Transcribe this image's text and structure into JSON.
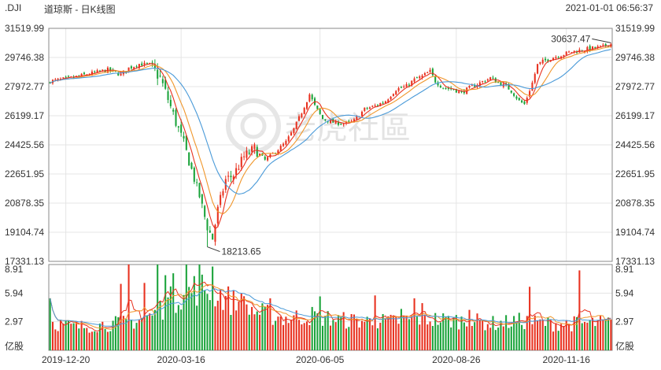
{
  "header": {
    "symbol": ".DJI",
    "title": "道琼斯 - 日K线图",
    "timestamp": "2021-01-01 06:56:37"
  },
  "watermark": {
    "text": "老虎社區"
  },
  "colors": {
    "up": "#e8311f",
    "down": "#1aa33a",
    "ma5": "#e8311f",
    "ma10": "#f0962a",
    "ma20": "#4a9ad8",
    "grid": "#e5e5e5",
    "frame": "#888888"
  },
  "chart_data": {
    "type": "candlestick",
    "price_axis": {
      "min": 17331.13,
      "max": 31519.99,
      "ticks": [
        "31519.99",
        "29746.38",
        "27972.77",
        "26199.17",
        "24425.56",
        "22651.95",
        "20878.35",
        "19104.74",
        "17331.13"
      ]
    },
    "volume_axis": {
      "max": 8.91,
      "ticks": [
        "8.91",
        "5.94",
        "2.97"
      ],
      "unit": "亿股"
    },
    "x_ticks": [
      "2019-12-20",
      "2020-03-16",
      "2020-06-05",
      "2020-08-26",
      "2020-11-16"
    ],
    "annotations": {
      "high": "30637.47",
      "low": "18213.65"
    },
    "price_path": [
      [
        0,
        28300
      ],
      [
        8,
        28500
      ],
      [
        15,
        28750
      ],
      [
        22,
        29000
      ],
      [
        27,
        28700
      ],
      [
        30,
        29100
      ],
      [
        34,
        29350
      ],
      [
        38,
        29300
      ],
      [
        42,
        28500
      ],
      [
        45,
        27200
      ],
      [
        48,
        25800
      ],
      [
        51,
        24500
      ],
      [
        54,
        22900
      ],
      [
        57,
        21300
      ],
      [
        60,
        19400
      ],
      [
        62,
        18700
      ],
      [
        64,
        20500
      ],
      [
        67,
        22300
      ],
      [
        70,
        22600
      ],
      [
        74,
        23700
      ],
      [
        78,
        24200
      ],
      [
        82,
        23500
      ],
      [
        86,
        24000
      ],
      [
        90,
        24600
      ],
      [
        93,
        25400
      ],
      [
        96,
        26400
      ],
      [
        99,
        27500
      ],
      [
        101,
        26800
      ],
      [
        104,
        26000
      ],
      [
        108,
        25800
      ],
      [
        112,
        25700
      ],
      [
        116,
        25900
      ],
      [
        120,
        26600
      ],
      [
        124,
        26800
      ],
      [
        128,
        27100
      ],
      [
        132,
        27800
      ],
      [
        136,
        28000
      ],
      [
        139,
        28400
      ],
      [
        142,
        28600
      ],
      [
        145,
        28900
      ],
      [
        147,
        28300
      ],
      [
        150,
        27900
      ],
      [
        154,
        27800
      ],
      [
        157,
        27600
      ],
      [
        160,
        27900
      ],
      [
        164,
        28200
      ],
      [
        168,
        28500
      ],
      [
        171,
        28200
      ],
      [
        174,
        28000
      ],
      [
        176,
        27700
      ],
      [
        179,
        27100
      ],
      [
        181,
        26900
      ],
      [
        184,
        28200
      ],
      [
        186,
        29300
      ],
      [
        188,
        29500
      ],
      [
        191,
        29700
      ],
      [
        195,
        29900
      ],
      [
        199,
        30100
      ],
      [
        203,
        30200
      ],
      [
        207,
        30300
      ],
      [
        211,
        30400
      ],
      [
        214,
        30637
      ]
    ],
    "volume_envelope": [
      [
        0,
        3.2
      ],
      [
        10,
        2.6
      ],
      [
        20,
        2.9
      ],
      [
        30,
        3.1
      ],
      [
        40,
        4.0
      ],
      [
        45,
        5.4
      ],
      [
        50,
        6.3
      ],
      [
        55,
        6.9
      ],
      [
        60,
        7.0
      ],
      [
        65,
        6.2
      ],
      [
        70,
        5.4
      ],
      [
        75,
        4.8
      ],
      [
        80,
        4.2
      ],
      [
        90,
        3.6
      ],
      [
        100,
        3.9
      ],
      [
        110,
        3.4
      ],
      [
        120,
        3.3
      ],
      [
        130,
        3.2
      ],
      [
        140,
        3.6
      ],
      [
        150,
        3.4
      ],
      [
        160,
        3.3
      ],
      [
        170,
        3.0
      ],
      [
        180,
        3.3
      ],
      [
        190,
        3.0
      ],
      [
        200,
        3.0
      ],
      [
        214,
        3.1
      ]
    ],
    "volume_spikes": [
      [
        0,
        5.4
      ],
      [
        27,
        6.9
      ],
      [
        30,
        9.0
      ],
      [
        36,
        7.0
      ],
      [
        41,
        8.9
      ],
      [
        44,
        7.8
      ],
      [
        47,
        8.0
      ],
      [
        52,
        8.9
      ],
      [
        57,
        8.9
      ],
      [
        62,
        8.7
      ],
      [
        73,
        5.9
      ],
      [
        84,
        5.4
      ],
      [
        103,
        5.6
      ],
      [
        124,
        5.7
      ],
      [
        134,
        4.3
      ],
      [
        139,
        5.4
      ],
      [
        142,
        4.9
      ],
      [
        160,
        4.2
      ],
      [
        183,
        6.6
      ],
      [
        202,
        8.3
      ]
    ]
  }
}
